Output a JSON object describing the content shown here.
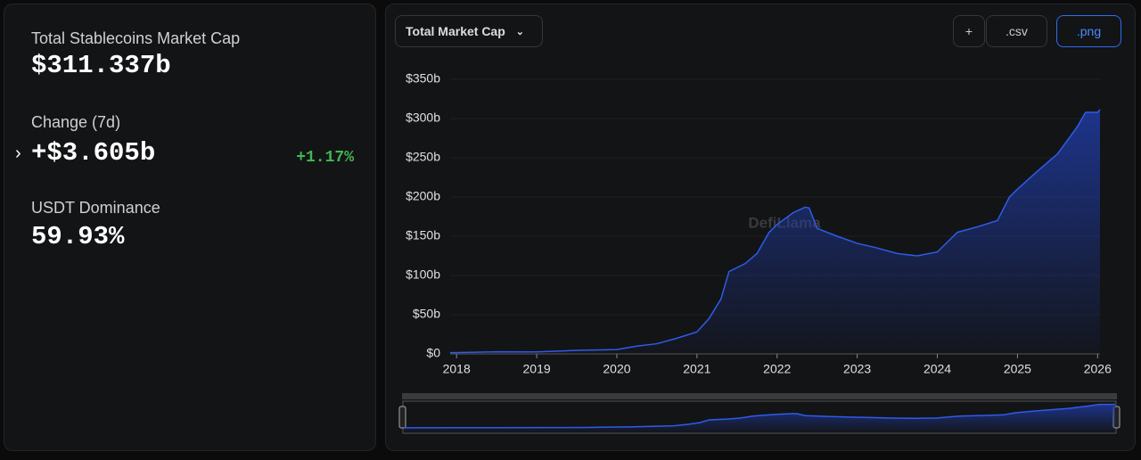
{
  "sidebar": {
    "stats": [
      {
        "label": "Total Stablecoins Market Cap",
        "value": "$311.337b"
      },
      {
        "label": "Change (7d)",
        "value": "+$3.605b",
        "change": "+1.17%"
      },
      {
        "label": "USDT Dominance",
        "value": "59.93%"
      }
    ]
  },
  "toolbar": {
    "dropdown": "Total Market Cap",
    "buttons": [
      "+",
      ".csv",
      ".png"
    ]
  },
  "watermark": "DefiLlama",
  "chart_data": {
    "type": "area",
    "color": "#2f5bea",
    "x": [
      2017.92,
      2018.5,
      2019.0,
      2019.5,
      2020.0,
      2020.25,
      2020.5,
      2020.75,
      2021.0,
      2021.15,
      2021.3,
      2021.4,
      2021.6,
      2021.75,
      2021.9,
      2022.0,
      2022.2,
      2022.35,
      2022.4,
      2022.5,
      2022.75,
      2023.0,
      2023.25,
      2023.5,
      2023.75,
      2024.0,
      2024.25,
      2024.5,
      2024.75,
      2024.9,
      2025.0,
      2025.25,
      2025.5,
      2025.75,
      2025.85,
      2026.0,
      2026.03
    ],
    "values": [
      1.5,
      2.7,
      2.6,
      4.5,
      5.5,
      10,
      13,
      20,
      28,
      45,
      70,
      105,
      115,
      128,
      155,
      165,
      180,
      187,
      186,
      160,
      150,
      141,
      135,
      128,
      125,
      130,
      155,
      162,
      170,
      200,
      210,
      233,
      255,
      290,
      308,
      308,
      311.337
    ],
    "xlim": [
      2017.92,
      2026.03
    ],
    "xticks": [
      2018,
      2019,
      2020,
      2021,
      2022,
      2023,
      2024,
      2025,
      2026
    ],
    "ylim": [
      0,
      350
    ],
    "yticks": [
      {
        "value": 0,
        "label": "$0"
      },
      {
        "value": 50,
        "label": "$50b"
      },
      {
        "value": 100,
        "label": "$100b"
      },
      {
        "value": 150,
        "label": "$150b"
      },
      {
        "value": 200,
        "label": "$200b"
      },
      {
        "value": 250,
        "label": "$250b"
      },
      {
        "value": 300,
        "label": "$300b"
      },
      {
        "value": 350,
        "label": "$350b"
      }
    ],
    "grid": true
  }
}
